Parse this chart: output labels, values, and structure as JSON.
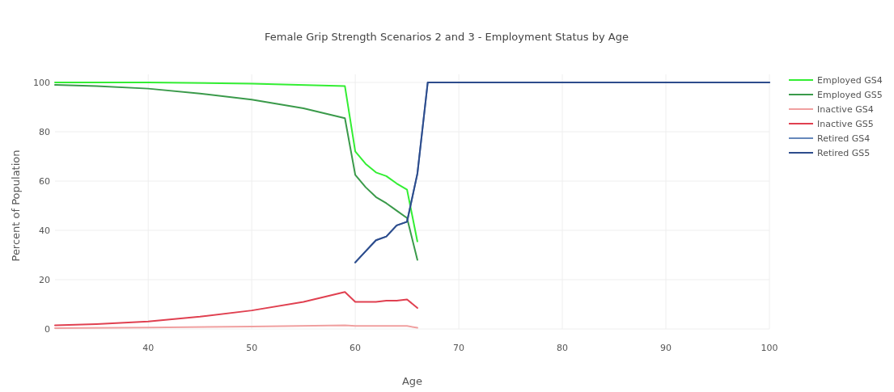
{
  "chart_data": {
    "type": "line",
    "title": "Female Grip Strength Scenarios 2 and 3 - Employment Status by Age",
    "xlabel": "Age",
    "ylabel": "Percent of Population",
    "xlim": [
      31,
      100
    ],
    "xticks": [
      40,
      50,
      60,
      70,
      80,
      90,
      100
    ],
    "ylim": [
      0,
      100
    ],
    "yticks": [
      0,
      20,
      40,
      60,
      80,
      100
    ],
    "grid": true,
    "legend": "top right",
    "line_style": "solid",
    "marker": "none",
    "series": [
      {
        "name": "Employed GS4",
        "color": "#33ee33",
        "x": [
          31,
          40,
          50,
          59,
          60,
          61,
          62,
          63,
          64,
          65,
          66
        ],
        "values": [
          100,
          100,
          99.5,
          98.5,
          72,
          67,
          63.5,
          62,
          59,
          56.5,
          35.5
        ]
      },
      {
        "name": "Employed GS5",
        "color": "#3a9a4a",
        "x": [
          31,
          35,
          40,
          45,
          50,
          55,
          59,
          60,
          61,
          62,
          63,
          64,
          65,
          66
        ],
        "values": [
          99,
          98.5,
          97.5,
          95.5,
          93,
          89.5,
          85.5,
          62.5,
          57.5,
          53.5,
          51,
          48,
          45,
          28
        ]
      },
      {
        "name": "Inactive GS4",
        "color": "#f0a0a0",
        "x": [
          31,
          40,
          50,
          59,
          60,
          65,
          66
        ],
        "values": [
          0.3,
          0.6,
          1,
          1.5,
          1.2,
          1.2,
          0.5
        ]
      },
      {
        "name": "Inactive GS5",
        "color": "#e04050",
        "x": [
          31,
          35,
          40,
          45,
          50,
          55,
          59,
          60,
          61,
          62,
          63,
          64,
          65,
          66
        ],
        "values": [
          1.5,
          2,
          3,
          5,
          7.5,
          11,
          15,
          11,
          11,
          11,
          11.5,
          11.5,
          12,
          8.5
        ]
      },
      {
        "name": "Retired GS4",
        "color": "#6688bb",
        "x": [
          60,
          61,
          62,
          63,
          64,
          65,
          66,
          67,
          100
        ],
        "values": [
          27,
          31.5,
          36,
          37.5,
          42,
          43.5,
          63,
          100,
          100
        ]
      },
      {
        "name": "Retired GS5",
        "color": "#2d4c8c",
        "x": [
          60,
          61,
          62,
          63,
          64,
          65,
          66,
          67,
          100
        ],
        "values": [
          27,
          31.5,
          36,
          37.5,
          42,
          43.5,
          63,
          100,
          100
        ]
      }
    ]
  }
}
